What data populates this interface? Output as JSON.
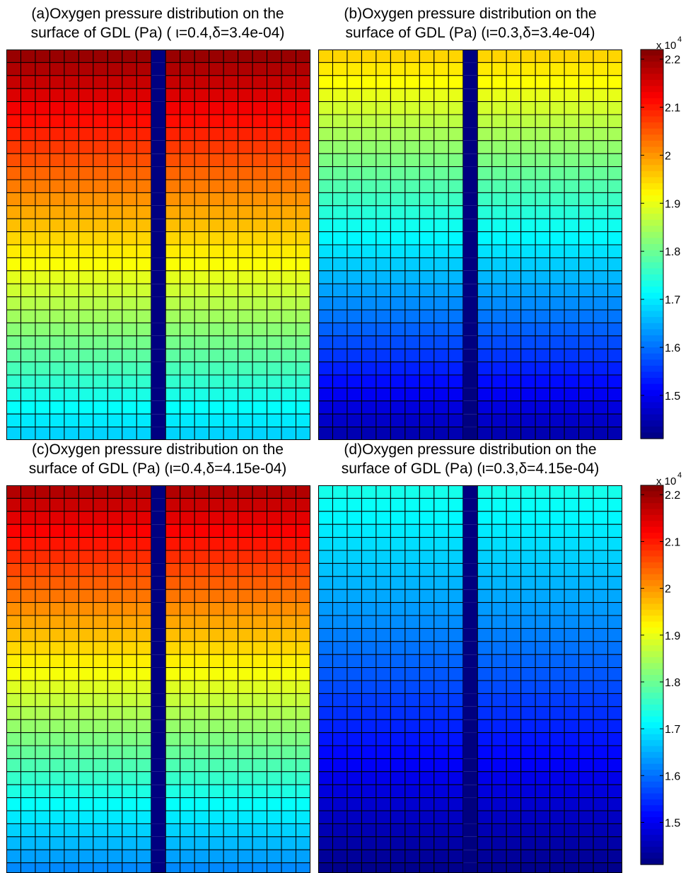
{
  "panels": [
    {
      "title_line1": "(a)Oxygen pressure distribution on the",
      "title_line2": "surface of GDL (Pa) ( ι=0.4,δ=3.4e-04)"
    },
    {
      "title_line1": "(b)Oxygen pressure distribution on the",
      "title_line2": "surface of GDL (Pa) (ι=0.3,δ=3.4e-04)"
    },
    {
      "title_line1": "(c)Oxygen pressure distribution on the",
      "title_line2": "surface of GDL (Pa) (ι=0.4,δ=4.15e-04)"
    },
    {
      "title_line1": "(d)Oxygen pressure distribution on the",
      "title_line2": "surface of GDL (Pa) (ι=0.3,δ=4.15e-04)"
    }
  ],
  "colorbars": [
    {
      "exponent_label": "x 10",
      "exponent_power": "4",
      "ticks": [
        "2.2",
        "2.1",
        "2",
        "1.9",
        "1.8",
        "1.7",
        "1.6",
        "1.5"
      ]
    },
    {
      "exponent_label": "x 10",
      "exponent_power": "4",
      "ticks": [
        "2.2",
        "2.1",
        "2",
        "1.9",
        "1.8",
        "1.7",
        "1.6",
        "1.5"
      ]
    }
  ],
  "chart_data": [
    {
      "type": "heatmap",
      "title": "(a)Oxygen pressure distribution on the surface of GDL (Pa) ( ι=0.4,δ=3.4e-04)",
      "colormap": "jet",
      "clim": [
        14100,
        22200
      ],
      "grid": true,
      "columns": 21,
      "rows": 30,
      "channel_column": 10,
      "channel_value": 14100,
      "row_profile": {
        "top": 22000,
        "bottom": 16800
      }
    },
    {
      "type": "heatmap",
      "title": "(b)Oxygen pressure distribution on the surface of GDL (Pa) (ι=0.3,δ=3.4e-04)",
      "colormap": "jet",
      "clim": [
        14100,
        22200
      ],
      "grid": true,
      "columns": 21,
      "rows": 30,
      "channel_column": 10,
      "channel_value": 14100,
      "row_profile": {
        "top": 19500,
        "bottom": 14500
      }
    },
    {
      "type": "heatmap",
      "title": "(c)Oxygen pressure distribution on the surface of GDL (Pa) (ι=0.4,δ=4.15e-04)",
      "colormap": "jet",
      "clim": [
        14100,
        22200
      ],
      "grid": true,
      "columns": 21,
      "rows": 30,
      "channel_column": 10,
      "channel_value": 14100,
      "row_profile": {
        "top": 21800,
        "bottom": 16200
      }
    },
    {
      "type": "heatmap",
      "title": "(d)Oxygen pressure distribution on the surface of GDL (Pa) (ι=0.3,δ=4.15e-04)",
      "colormap": "jet",
      "clim": [
        14100,
        22200
      ],
      "grid": true,
      "columns": 21,
      "rows": 30,
      "channel_column": 10,
      "channel_value": 14100,
      "row_profile": {
        "top": 17300,
        "bottom": 14200
      }
    }
  ]
}
